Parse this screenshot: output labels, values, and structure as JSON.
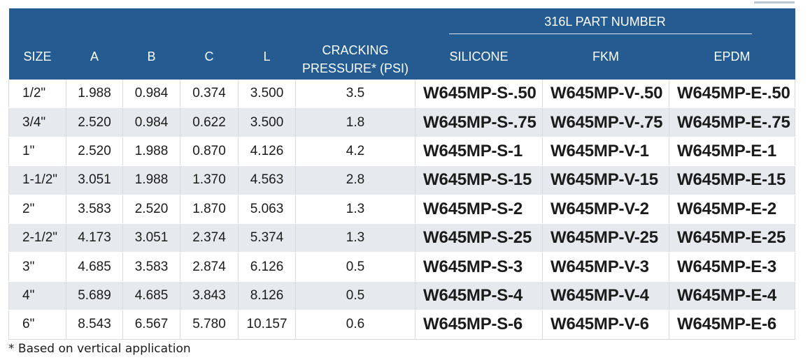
{
  "header": {
    "group_title": "316L PART NUMBER",
    "columns": [
      "SIZE",
      "A",
      "B",
      "C",
      "L"
    ],
    "cracking_line1": "CRACKING",
    "cracking_line2": "PRESSURE* (PSI)",
    "materials": [
      "SILICONE",
      "FKM",
      "EPDM"
    ]
  },
  "rows": [
    {
      "size": "1/2\"",
      "a": "1.988",
      "b": "0.984",
      "c": "0.374",
      "l": "3.500",
      "cp": "3.5",
      "silicone": "W645MP-S-.50",
      "fkm": "W645MP-V-.50",
      "epdm": "W645MP-E-.50"
    },
    {
      "size": "3/4\"",
      "a": "2.520",
      "b": "0.984",
      "c": "0.622",
      "l": "3.500",
      "cp": "1.8",
      "silicone": "W645MP-S-.75",
      "fkm": "W645MP-V-.75",
      "epdm": "W645MP-E-.75"
    },
    {
      "size": "1\"",
      "a": "2.520",
      "b": "1.988",
      "c": "0.870",
      "l": "4.126",
      "cp": "4.2",
      "silicone": "W645MP-S-1",
      "fkm": "W645MP-V-1",
      "epdm": "W645MP-E-1"
    },
    {
      "size": "1-1/2\"",
      "a": "3.051",
      "b": "1.988",
      "c": "1.370",
      "l": "4.563",
      "cp": "2.8",
      "silicone": "W645MP-S-15",
      "fkm": "W645MP-V-15",
      "epdm": "W645MP-E-15"
    },
    {
      "size": "2\"",
      "a": "3.583",
      "b": "2.520",
      "c": "1.870",
      "l": "5.063",
      "cp": "1.3",
      "silicone": "W645MP-S-2",
      "fkm": "W645MP-V-2",
      "epdm": "W645MP-E-2"
    },
    {
      "size": "2-1/2\"",
      "a": "4.173",
      "b": "3.051",
      "c": "2.374",
      "l": "5.374",
      "cp": "1.3",
      "silicone": "W645MP-S-25",
      "fkm": "W645MP-V-25",
      "epdm": "W645MP-E-25"
    },
    {
      "size": "3\"",
      "a": "4.685",
      "b": "3.583",
      "c": "2.874",
      "l": "6.126",
      "cp": "0.5",
      "silicone": "W645MP-S-3",
      "fkm": "W645MP-V-3",
      "epdm": "W645MP-E-3"
    },
    {
      "size": "4\"",
      "a": "5.689",
      "b": "4.685",
      "c": "3.843",
      "l": "8.126",
      "cp": "0.5",
      "silicone": "W645MP-S-4",
      "fkm": "W645MP-V-4",
      "epdm": "W645MP-E-4"
    },
    {
      "size": "6\"",
      "a": "8.543",
      "b": "6.567",
      "c": "5.780",
      "l": "10.157",
      "cp": "0.6",
      "silicone": "W645MP-S-6",
      "fkm": "W645MP-V-6",
      "epdm": "W645MP-E-6"
    }
  ],
  "footnote": "* Based on vertical application",
  "colors": {
    "header_bg": "#245c91",
    "stripe_bg": "#e6eaee"
  }
}
